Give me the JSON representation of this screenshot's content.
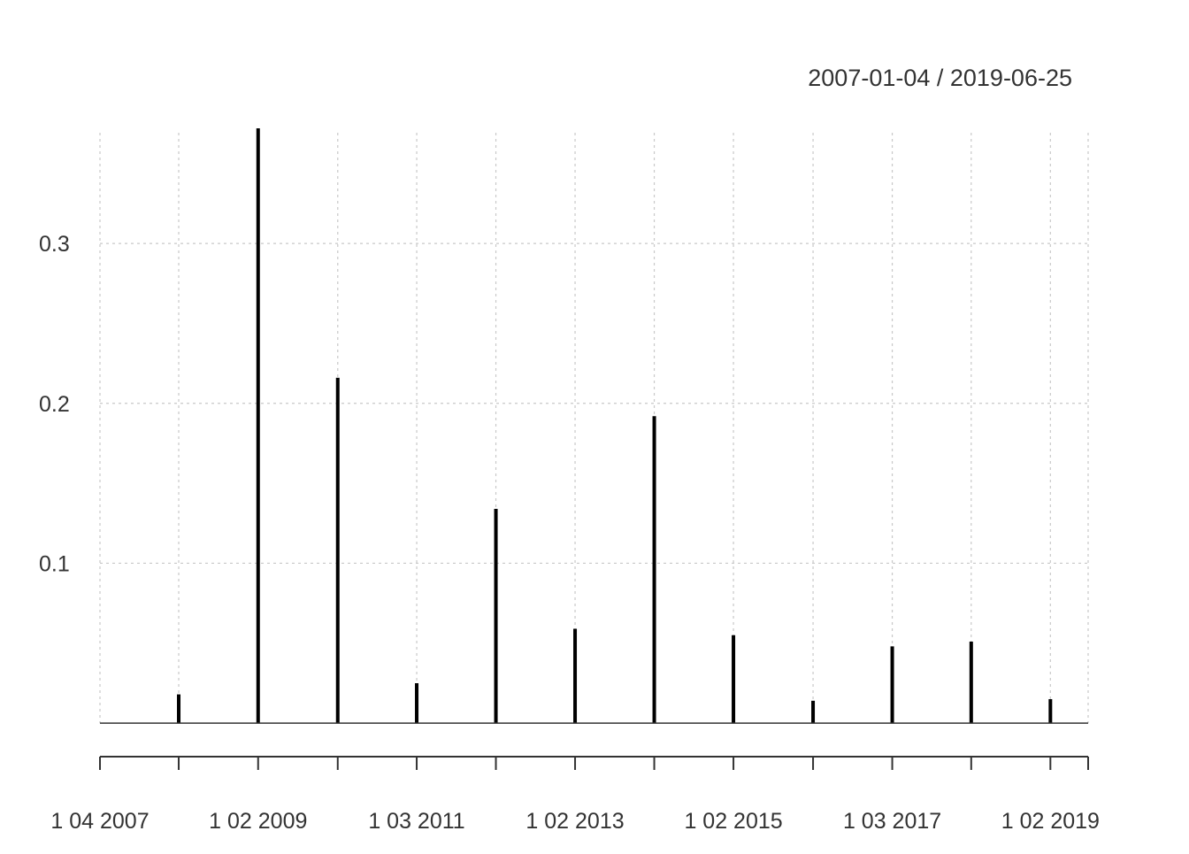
{
  "chart_data": {
    "type": "bar",
    "title": "",
    "subtitle": "2007-01-04 / 2019-06-25",
    "xlabel": "",
    "ylabel": "",
    "x": [
      "2007-01-04",
      "2008-01-02",
      "2009-01-02",
      "2010-01-04",
      "2011-01-03",
      "2012-01-03",
      "2013-01-02",
      "2014-01-02",
      "2015-01-02",
      "2016-01-04",
      "2017-01-03",
      "2018-01-02",
      "2019-01-02"
    ],
    "values": [
      0,
      0.018,
      0.372,
      0.216,
      0.025,
      0.134,
      0.059,
      0.192,
      0.055,
      0.014,
      0.048,
      0.051,
      0.015
    ],
    "ylim": [
      -0.011,
      0.372
    ],
    "y_ticks": [
      0.1,
      0.2,
      0.3
    ],
    "y_tick_labels": [
      "0.1",
      "0.2",
      "0.3"
    ],
    "x_ticks": [
      "2007-01-04",
      "2008-01-02",
      "2009-01-02",
      "2010-01-04",
      "2011-01-03",
      "2012-01-03",
      "2013-01-02",
      "2014-01-02",
      "2015-01-02",
      "2016-01-04",
      "2017-01-03",
      "2018-01-02",
      "2019-01-02",
      "2019-06-25"
    ],
    "x_tick_labels": [
      {
        "date": "2007-01-04",
        "label": "1 04 2007"
      },
      {
        "date": "2009-01-02",
        "label": "1 02 2009"
      },
      {
        "date": "2011-01-03",
        "label": "1 03 2011"
      },
      {
        "date": "2013-01-02",
        "label": "1 02 2013"
      },
      {
        "date": "2015-01-02",
        "label": "1 02 2015"
      },
      {
        "date": "2017-01-03",
        "label": "1 03 2017"
      },
      {
        "date": "2019-01-02",
        "label": "1 02 2019"
      }
    ],
    "grid": true,
    "colors": {
      "bar": "#000000",
      "grid": "#c8c8c8",
      "axis": "#333333",
      "text": "#333333"
    }
  }
}
